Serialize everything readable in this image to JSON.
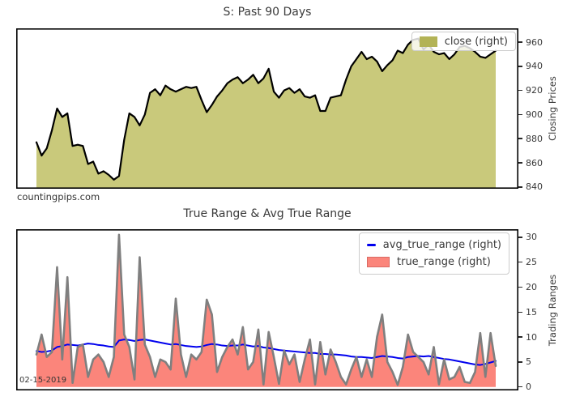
{
  "figure": {
    "watermark": "countingpips.com",
    "date_annotation": "02-15-2019"
  },
  "chart_data": [
    {
      "type": "area",
      "title": "S: Past 90 Days",
      "xlabel": "",
      "ylabel": "Closing Prices",
      "y_axis_side": "right",
      "yticks": [
        840,
        860,
        880,
        900,
        920,
        940,
        960
      ],
      "ylim": [
        838.5,
        971.5
      ],
      "grid": false,
      "legend_position": "upper right",
      "x_description": "90 consecutive trading days ending 02-15-2019 (no x tick labels shown)",
      "series": [
        {
          "name": "close (right)",
          "type": "area",
          "fill_color": "#c9c97b",
          "line_color": "#000000",
          "values": [
            877,
            866,
            872,
            887,
            905,
            898,
            901,
            874,
            875,
            874,
            859,
            861,
            851,
            853,
            850,
            846,
            849,
            879,
            901,
            898,
            891,
            900,
            918,
            921,
            916,
            924,
            921,
            919,
            921,
            923,
            922,
            923,
            912,
            902,
            908,
            915,
            920,
            926,
            929,
            931,
            926,
            929,
            933,
            926,
            930,
            938,
            919,
            914,
            920,
            922,
            918,
            921,
            915,
            914,
            916,
            903,
            903,
            914,
            915,
            916,
            929,
            940,
            946,
            952,
            946,
            948,
            944,
            936,
            941,
            945,
            953,
            951,
            958,
            962,
            963,
            954,
            958,
            952,
            950,
            951,
            946,
            950,
            956,
            957,
            955,
            952,
            948,
            947,
            950,
            953
          ]
        }
      ]
    },
    {
      "type": "area+line",
      "title": "True Range & Avg True Range",
      "xlabel": "",
      "ylabel": "Trading Ranges",
      "y_axis_side": "right",
      "yticks": [
        0,
        5,
        10,
        15,
        20,
        25,
        30
      ],
      "ylim": [
        -0.7,
        31.6
      ],
      "grid": false,
      "legend_position": "upper right",
      "x_description": "same 90 trading days as price chart",
      "series": [
        {
          "name": "avg_true_range (right)",
          "type": "line",
          "line_color": "#0000ee",
          "values": [
            7.2,
            7.0,
            7.1,
            7.3,
            8.0,
            8.2,
            8.5,
            8.4,
            8.3,
            8.5,
            8.7,
            8.6,
            8.4,
            8.3,
            8.1,
            8.0,
            9.3,
            9.5,
            9.4,
            9.2,
            9.4,
            9.5,
            9.3,
            9.1,
            8.9,
            8.7,
            8.5,
            8.6,
            8.4,
            8.2,
            8.1,
            8.0,
            8.1,
            8.4,
            8.6,
            8.5,
            8.3,
            8.2,
            8.3,
            8.3,
            8.5,
            8.3,
            8.1,
            8.2,
            7.9,
            7.8,
            7.6,
            7.4,
            7.3,
            7.2,
            7.1,
            7.0,
            6.9,
            6.8,
            6.8,
            6.6,
            6.6,
            6.5,
            6.5,
            6.4,
            6.3,
            6.1,
            6.0,
            6.0,
            5.9,
            5.8,
            6.0,
            6.2,
            6.1,
            6.0,
            5.8,
            5.7,
            6.0,
            6.1,
            6.2,
            6.1,
            6.2,
            6.0,
            5.8,
            5.6,
            5.5,
            5.3,
            5.1,
            4.9,
            4.7,
            4.5,
            4.4,
            4.6,
            4.9,
            5.2
          ]
        },
        {
          "name": "true_range (right)",
          "type": "area",
          "fill_color": "#fb857b",
          "line_color": "#7f7f7f",
          "baseline": 0,
          "values": [
            6.5,
            10.5,
            6.0,
            7.0,
            24.0,
            5.5,
            22.0,
            0.8,
            8.0,
            8.5,
            2.0,
            5.5,
            6.5,
            5.0,
            2.0,
            6.0,
            30.5,
            10.5,
            8.0,
            1.5,
            26.0,
            8.5,
            6.0,
            2.0,
            5.5,
            5.0,
            3.5,
            17.7,
            6.5,
            2.0,
            6.5,
            5.5,
            7.0,
            17.5,
            14.5,
            3.0,
            6.0,
            8.0,
            9.5,
            6.5,
            12.0,
            3.5,
            5.0,
            11.5,
            0.5,
            11.0,
            6.0,
            0.6,
            7.3,
            4.5,
            6.5,
            1.0,
            5.5,
            9.5,
            0.5,
            9.0,
            2.5,
            7.5,
            5.0,
            2.0,
            0.5,
            3.5,
            6.0,
            2.0,
            5.5,
            2.0,
            10.0,
            14.5,
            5.0,
            3.0,
            0.4,
            4.0,
            10.5,
            7.0,
            6.0,
            5.0,
            2.5,
            8.0,
            0.5,
            5.5,
            1.5,
            2.0,
            4.0,
            1.0,
            0.8,
            3.0,
            10.8,
            2.0,
            10.8,
            4.2
          ]
        }
      ]
    }
  ]
}
